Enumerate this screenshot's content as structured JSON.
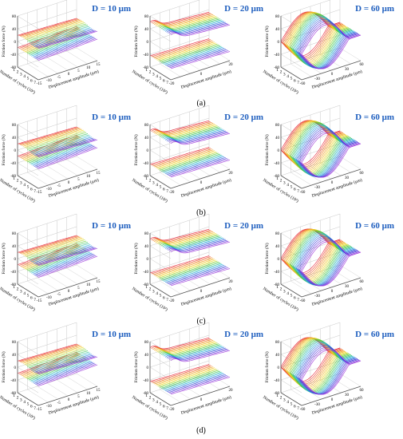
{
  "figure": {
    "row_labels": [
      "(a)",
      "(b)",
      "(c)",
      "(d)"
    ],
    "colors": {
      "title_text": "#1f5fbf",
      "axis_line": "#555555",
      "grid_line": "#c8c8c8",
      "gradient": [
        "#e8283a",
        "#f08c1e",
        "#f0dc28",
        "#3cc83c",
        "#28b4dc",
        "#3c3cdc",
        "#a03cdc"
      ]
    }
  },
  "chart_data": [
    {
      "type": "surface3d",
      "row": "(a)",
      "title": "D = 10 μm",
      "zlabel": "Friction force (N)",
      "ylabel": "Number of cycles (10³)",
      "xlabel": "Displacement amplitude (μm)",
      "z_ticks": [
        "80",
        "40",
        "0",
        "-40",
        "-80"
      ],
      "y_ticks": [
        "1",
        "2",
        "3",
        "4",
        "5",
        "6",
        "7"
      ],
      "x_ticks": [
        "-15",
        "-10",
        "-5",
        "0",
        "5",
        "10",
        "15"
      ],
      "x_range": [
        -15,
        15
      ],
      "cycles_range": [
        1,
        7
      ],
      "force_range": [
        -80,
        80
      ],
      "shape": "flat",
      "peak_force_estimate": 40
    },
    {
      "type": "surface3d",
      "row": "(a)",
      "title": "D = 20 μm",
      "zlabel": "Friction force (N)",
      "ylabel": "Number of cycles (10³)",
      "xlabel": "Displacement amplitude (μm)",
      "z_ticks": [
        "80",
        "40",
        "0",
        "-40",
        "-80"
      ],
      "y_ticks": [
        "1",
        "2",
        "3",
        "4",
        "5",
        "6",
        "7"
      ],
      "x_ticks": [
        "-20",
        "0",
        "20"
      ],
      "x_range": [
        -20,
        20
      ],
      "cycles_range": [
        1,
        7
      ],
      "force_range": [
        -80,
        80
      ],
      "shape": "hump",
      "peak_force_estimate": 60
    },
    {
      "type": "surface3d",
      "row": "(a)",
      "title": "D = 60 μm",
      "zlabel": "Friction force (N)",
      "ylabel": "Number of cycles (10³)",
      "xlabel": "Displacement amplitude (μm)",
      "z_ticks": [
        "80",
        "40",
        "0",
        "-40",
        "-80"
      ],
      "y_ticks": [
        "1",
        "2",
        "3",
        "4",
        "5",
        "6",
        "7"
      ],
      "x_ticks": [
        "-60",
        "-30",
        "0",
        "30",
        "60"
      ],
      "x_range": [
        -60,
        60
      ],
      "cycles_range": [
        1,
        7
      ],
      "force_range": [
        -80,
        80
      ],
      "shape": "loop",
      "peak_force_estimate": 80
    },
    {
      "type": "surface3d",
      "row": "(b)",
      "title": "D = 10 μm",
      "zlabel": "Friction force (N)",
      "ylabel": "Number of cycles (10³)",
      "xlabel": "Displacement amplitude (μm)",
      "z_ticks": [
        "80",
        "40",
        "0",
        "-40",
        "-80"
      ],
      "y_ticks": [
        "1",
        "2",
        "3",
        "4",
        "5",
        "6",
        "7"
      ],
      "x_ticks": [
        "-15",
        "-10",
        "-5",
        "0",
        "5",
        "10",
        "15"
      ],
      "x_range": [
        -15,
        15
      ],
      "cycles_range": [
        1,
        7
      ],
      "force_range": [
        -80,
        80
      ],
      "shape": "flat",
      "peak_force_estimate": 40
    },
    {
      "type": "surface3d",
      "row": "(b)",
      "title": "D = 20 μm",
      "zlabel": "Friction force (N)",
      "ylabel": "Number of cycles (10³)",
      "xlabel": "Displacement amplitude (μm)",
      "z_ticks": [
        "80",
        "40",
        "0",
        "-40",
        "-80"
      ],
      "y_ticks": [
        "1",
        "2",
        "3",
        "4",
        "5",
        "6",
        "7"
      ],
      "x_ticks": [
        "-20",
        "0",
        "20"
      ],
      "x_range": [
        -20,
        20
      ],
      "cycles_range": [
        1,
        7
      ],
      "force_range": [
        -80,
        80
      ],
      "shape": "hump",
      "peak_force_estimate": 60
    },
    {
      "type": "surface3d",
      "row": "(b)",
      "title": "D = 60 μm",
      "zlabel": "Friction force (N)",
      "ylabel": "Number of cycles (10³)",
      "xlabel": "Displacement amplitude (μm)",
      "z_ticks": [
        "80",
        "40",
        "0",
        "-40",
        "-80"
      ],
      "y_ticks": [
        "1",
        "2",
        "3",
        "4",
        "5",
        "6",
        "7"
      ],
      "x_ticks": [
        "-60",
        "-30",
        "0",
        "30",
        "60"
      ],
      "x_range": [
        -60,
        60
      ],
      "cycles_range": [
        1,
        7
      ],
      "force_range": [
        -80,
        80
      ],
      "shape": "loop",
      "peak_force_estimate": 80
    },
    {
      "type": "surface3d",
      "row": "(c)",
      "title": "D = 10 μm",
      "zlabel": "Friction force (N)",
      "ylabel": "Number of cycles (10³)",
      "xlabel": "Displacement amplitude (μm)",
      "z_ticks": [
        "80",
        "40",
        "0",
        "-40",
        "-80"
      ],
      "y_ticks": [
        "1",
        "2",
        "3",
        "4",
        "5",
        "6",
        "7"
      ],
      "x_ticks": [
        "-15",
        "-10",
        "-5",
        "0",
        "5",
        "10",
        "15"
      ],
      "x_range": [
        -15,
        15
      ],
      "cycles_range": [
        1,
        7
      ],
      "force_range": [
        -80,
        80
      ],
      "shape": "flat",
      "peak_force_estimate": 40
    },
    {
      "type": "surface3d",
      "row": "(c)",
      "title": "D = 20 μm",
      "zlabel": "Friction force (N)",
      "ylabel": "Number of cycles (10³)",
      "xlabel": "Displacement amplitude (μm)",
      "z_ticks": [
        "80",
        "40",
        "0",
        "-40",
        "-80"
      ],
      "y_ticks": [
        "1",
        "2",
        "3",
        "4",
        "5",
        "6",
        "7"
      ],
      "x_ticks": [
        "-20",
        "0",
        "20"
      ],
      "x_range": [
        -20,
        20
      ],
      "cycles_range": [
        1,
        7
      ],
      "force_range": [
        -80,
        80
      ],
      "shape": "hump",
      "peak_force_estimate": 60
    },
    {
      "type": "surface3d",
      "row": "(c)",
      "title": "D = 60 μm",
      "zlabel": "Friction force (N)",
      "ylabel": "Number of cycles (10³)",
      "xlabel": "Displacement amplitude (μm)",
      "z_ticks": [
        "80",
        "40",
        "0",
        "-40",
        "-80"
      ],
      "y_ticks": [
        "1",
        "2",
        "3",
        "4",
        "5",
        "6",
        "7"
      ],
      "x_ticks": [
        "-60",
        "-30",
        "0",
        "30",
        "60"
      ],
      "x_range": [
        -60,
        60
      ],
      "cycles_range": [
        1,
        7
      ],
      "force_range": [
        -80,
        80
      ],
      "shape": "loop",
      "peak_force_estimate": 80
    },
    {
      "type": "surface3d",
      "row": "(d)",
      "title": "D = 10 μm",
      "zlabel": "Friction force (N)",
      "ylabel": "Number of cycles (10³)",
      "xlabel": "Displacement amplitude (μm)",
      "z_ticks": [
        "80",
        "40",
        "0",
        "-40",
        "-80"
      ],
      "y_ticks": [
        "1",
        "2",
        "3",
        "4",
        "5",
        "6",
        "7"
      ],
      "x_ticks": [
        "-15",
        "-10",
        "-5",
        "0",
        "5",
        "10",
        "15"
      ],
      "x_range": [
        -15,
        15
      ],
      "cycles_range": [
        1,
        7
      ],
      "force_range": [
        -80,
        80
      ],
      "shape": "flat",
      "peak_force_estimate": 40
    },
    {
      "type": "surface3d",
      "row": "(d)",
      "title": "D = 20 μm",
      "zlabel": "Friction force (N)",
      "ylabel": "Number of cycles (10³)",
      "xlabel": "Displacement amplitude (μm)",
      "z_ticks": [
        "80",
        "40",
        "0",
        "-40",
        "-80"
      ],
      "y_ticks": [
        "1",
        "2",
        "3",
        "4",
        "5",
        "6",
        "7"
      ],
      "x_ticks": [
        "-20",
        "0",
        "20"
      ],
      "x_range": [
        -20,
        20
      ],
      "cycles_range": [
        1,
        7
      ],
      "force_range": [
        -80,
        80
      ],
      "shape": "hump",
      "peak_force_estimate": 60
    },
    {
      "type": "surface3d",
      "row": "(d)",
      "title": "D = 60 μm",
      "zlabel": "Friction force (N)",
      "ylabel": "Number of cycles (10³)",
      "xlabel": "Displacement amplitude (μm)",
      "z_ticks": [
        "80",
        "40",
        "0",
        "-40",
        "-80"
      ],
      "y_ticks": [
        "1",
        "2",
        "3",
        "4",
        "5",
        "6",
        "7"
      ],
      "x_ticks": [
        "-60",
        "-30",
        "0",
        "30",
        "60"
      ],
      "x_range": [
        -60,
        60
      ],
      "cycles_range": [
        1,
        7
      ],
      "force_range": [
        -80,
        80
      ],
      "shape": "loop",
      "peak_force_estimate": 80
    }
  ]
}
